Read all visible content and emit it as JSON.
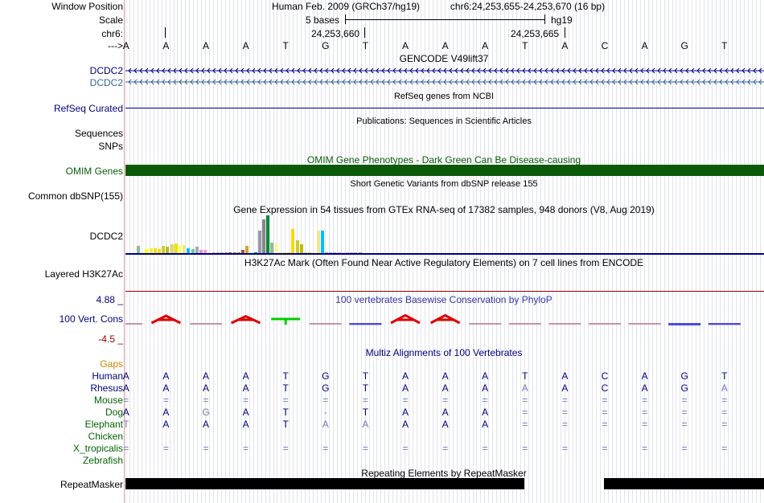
{
  "ruler": {
    "window_position_label": "Window Position",
    "scale_label": "Scale",
    "chrom_label": "chr6:",
    "arrow_label": "--->",
    "assembly_title": "Human Feb. 2009 (GRCh37/hg19)",
    "position_text": "chr6:24,253,655-24,253,670 (16 bp)",
    "scale_text": "5 bases",
    "scale_db": "hg19",
    "coord_1": "24,253,660",
    "coord_2": "24,253,665",
    "bases": [
      "A",
      "A",
      "A",
      "A",
      "T",
      "G",
      "T",
      "A",
      "A",
      "A",
      "T",
      "A",
      "C",
      "A",
      "G",
      "T"
    ]
  },
  "tracks": {
    "gencode_title": "GENCODE V49lift37",
    "gene_label_1": "DCDC2",
    "gene_label_2": "DCDC2",
    "refseq_label": "RefSeq Curated",
    "refseq_title": "RefSeq genes from NCBI",
    "sequences_label": "Sequences",
    "snps_label": "SNPs",
    "publications_title": "Publications: Sequences in Scientific Articles",
    "omim_title": "OMIM Gene Phenotypes - Dark Green Can Be Disease-causing",
    "omim_label": "OMIM Genes",
    "dbsnp_title": "Short Genetic Variants from dbSNP release 155",
    "dbsnp_label": "Common dbSNP(155)",
    "gtex_title": "Gene Expression in 54 tissues from GTEx RNA-seq of 17382 samples, 948 donors (V8, Aug 2019)",
    "gtex_label": "DCDC2",
    "h3k27ac_title": "H3K27Ac Mark (Often Found Near Active Regulatory Elements) on 7 cell lines from ENCODE",
    "h3k27ac_label": "Layered H3K27Ac",
    "phylop_title": "100 vertebrates Basewise Conservation by PhyloP",
    "phylop_label": "100 Vert. Cons",
    "phylop_max": "4.88 _",
    "phylop_min": "-4.5 _",
    "multiz_title": "Multiz Alignments of 100 Vertebrates",
    "repeat_title": "Repeating Elements by RepeatMasker",
    "repeat_label": "RepeatMasker"
  },
  "alignment": {
    "gaps_label": "Gaps",
    "species": [
      {
        "name": "Human",
        "bases": [
          "A",
          "A",
          "A",
          "A",
          "T",
          "G",
          "T",
          "A",
          "A",
          "A",
          "T",
          "A",
          "C",
          "A",
          "G",
          "T"
        ]
      },
      {
        "name": "Rhesus",
        "bases": [
          "A",
          "A",
          "A",
          "A",
          "T",
          "G",
          "T",
          "A",
          "A",
          "A",
          "A",
          "A",
          "C",
          "A",
          "G",
          "A"
        ]
      },
      {
        "name": "Mouse",
        "bases": [
          "=",
          "=",
          "=",
          "=",
          "=",
          "=",
          "=",
          "=",
          "=",
          "=",
          "=",
          "=",
          "=",
          "=",
          "=",
          "="
        ]
      },
      {
        "name": "Dog",
        "bases": [
          "A",
          "A",
          "G",
          "A",
          "T",
          "-",
          "T",
          "A",
          "A",
          "A",
          "=",
          "=",
          "=",
          "=",
          "=",
          "="
        ]
      },
      {
        "name": "Elephant",
        "bases": [
          "T",
          "A",
          "A",
          "A",
          "T",
          "A",
          "A",
          "A",
          "A",
          "A",
          "=",
          "=",
          "=",
          "=",
          "=",
          "="
        ]
      },
      {
        "name": "Chicken",
        "bases": [
          "",
          "",
          "",
          "",
          "",
          "",
          "",
          "",
          "",
          "",
          "",
          "",
          "",
          "",
          "",
          ""
        ]
      },
      {
        "name": "X_tropicalis",
        "bases": [
          "=",
          "=",
          "=",
          "=",
          "=",
          "=",
          "=",
          "=",
          "=",
          "=",
          "=",
          "=",
          "=",
          "=",
          "=",
          "="
        ]
      },
      {
        "name": "Zebrafish",
        "bases": [
          "",
          "",
          "",
          "",
          "",
          "",
          "",
          "",
          "",
          "",
          "",
          "",
          "",
          "",
          "",
          ""
        ]
      }
    ]
  },
  "colors": {
    "gene_dark": "#000080",
    "gene_light": "#336699",
    "omim_green": "#0a5a0a",
    "multiz_species": "#006400",
    "gaps_orange": "#cc8800",
    "phylop_red": "#dd0000",
    "phylop_blue": "#0000cc"
  },
  "gtex_values": [
    0.2,
    0.05,
    0.12,
    0.15,
    0.15,
    0.12,
    0.2,
    0.18,
    0.25,
    0.28,
    0.2,
    0.22,
    0.15,
    0.12,
    0.18,
    0.1,
    0.1,
    0.05,
    0.05,
    0.05,
    0.05,
    0.05,
    0.05,
    0.05,
    0.05,
    0.1,
    0.2,
    0.05,
    0.05,
    0.6,
    0.9,
    1.0,
    0.3,
    0.28,
    0.05,
    0.05,
    0.05,
    0.65,
    0.35,
    0.25,
    0.05,
    0.05,
    0.05,
    0.6,
    0.6,
    0.05,
    0.05,
    0.05,
    0.05,
    0.05,
    0.05,
    0.05,
    0.05,
    0.05
  ],
  "phylop_values": [
    -0.2,
    1.5,
    -0.3,
    1.4,
    0.3,
    -0.3,
    -0.4,
    1.6,
    1.6,
    0.0,
    0.0,
    0.0,
    -0.2,
    -0.2,
    -0.5,
    -0.4
  ]
}
